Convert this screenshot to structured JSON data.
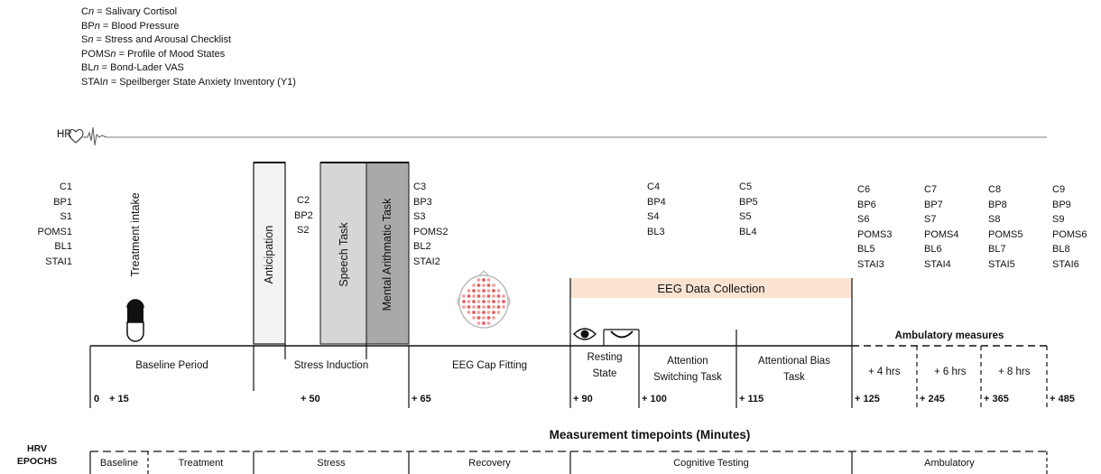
{
  "legend": [
    {
      "prefix": "C",
      "rest": " = Salivary Cortisol"
    },
    {
      "prefix": "BP",
      "rest": " = Blood Pressure"
    },
    {
      "prefix": "S",
      "rest": " = Stress and Arousal Checklist"
    },
    {
      "prefix": "POMS",
      "rest": " = Profile of Mood States"
    },
    {
      "prefix": "BL",
      "rest": " = Bond-Lader VAS"
    },
    {
      "prefix": "STAI",
      "rest": " = Speilberger State Anxiety Inventory (Y1)"
    }
  ],
  "hr_label": "HR",
  "measures": {
    "m1": [
      "C1",
      "BP1",
      "S1",
      "POMS1",
      "BL1",
      "STAI1"
    ],
    "m2": [
      "C2",
      "BP2",
      "S2"
    ],
    "m3": [
      "C3",
      "BP3",
      "S3",
      "POMS2",
      "BL2",
      "STAI2"
    ],
    "m4": [
      "C4",
      "BP4",
      "S4",
      "BL3"
    ],
    "m5": [
      "C5",
      "BP5",
      "S5",
      "BL4"
    ],
    "m6": [
      "C6",
      "BP6",
      "S6",
      "POMS3",
      "BL5",
      "STAI3"
    ],
    "m7": [
      "C7",
      "BP7",
      "S7",
      "POMS4",
      "BL6",
      "STAI4"
    ],
    "m8": [
      "C8",
      "BP8",
      "S8",
      "POMS5",
      "BL7",
      "STAI5"
    ],
    "m9": [
      "C9",
      "BP9",
      "S9",
      "POMS6",
      "BL8",
      "STAI6"
    ]
  },
  "treatment_intake": "Treatment intake",
  "tasks": {
    "anticipation": "Anticipation",
    "speech": "Speech Task",
    "mental": "Mental Arithmatic Task"
  },
  "eeg_data_collection": "EEG Data Collection",
  "ambulatory_measures": "Ambulatory measures",
  "phases": {
    "baseline": "Baseline Period",
    "stress": "Stress Induction",
    "eeg_cap": "EEG Cap Fitting",
    "resting_1": "Resting",
    "resting_2": "State",
    "attention_1": "Attention",
    "attention_2": "Switching Task",
    "bias_1": "Attentional Bias",
    "bias_2": "Task",
    "amb4": "+ 4 hrs",
    "amb6": "+ 6 hrs",
    "amb8": "+ 8 hrs"
  },
  "timepoints": [
    "0",
    "+ 15",
    "+ 50",
    "+ 65",
    "+ 90",
    "+ 100",
    "+ 115",
    "+ 125",
    "+ 245",
    "+ 365",
    "+ 485"
  ],
  "axis_title": "Measurement timepoints (Minutes)",
  "hrv_label_1": "HRV",
  "hrv_label_2": "EPOCHS",
  "epochs": [
    "Baseline",
    "Treatment",
    "Stress",
    "Recovery",
    "Cognitive Testing",
    "Ambulatory"
  ],
  "colors": {
    "eeg_band": "#fbe3d2",
    "anticipation_fill": "#f2f2f2",
    "speech_fill": "#d6d6d6",
    "mental_fill": "#a9a9a9",
    "line": "#111111",
    "hr_line": "#888888",
    "electrode": "#e06060"
  }
}
